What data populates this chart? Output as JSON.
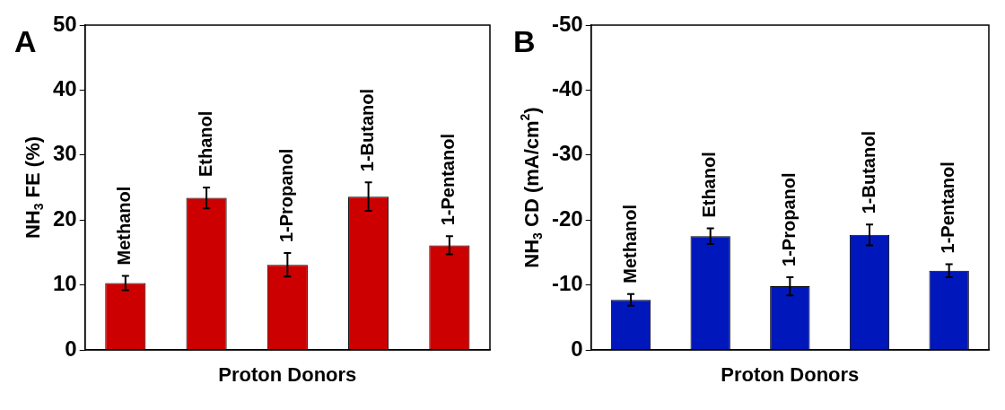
{
  "chart_data": [
    {
      "type": "bar",
      "annotations": [
        "A"
      ],
      "xlabel": "Proton Donors",
      "ylabel": "NH$_{3}$ FE (%)",
      "categories": [
        "Methanol",
        "Ethanol",
        "1-Propanol",
        "1-Butanol",
        "1-Pentanol"
      ],
      "values": [
        10.3,
        23.4,
        13.1,
        23.6,
        16.1
      ],
      "errors": [
        1.1,
        1.6,
        1.8,
        2.2,
        1.4
      ],
      "color": "#cc0000",
      "ylim": [
        0,
        50
      ],
      "yticks": [
        0,
        10,
        20,
        30,
        40,
        50
      ],
      "tick_labels": "y"
    },
    {
      "type": "bar",
      "annotations": [
        "B"
      ],
      "xlabel": "Proton Donors",
      "ylabel": "NH$_{3}$ CD (mA/cm$^{2}$)",
      "categories": [
        "Methanol",
        "Ethanol",
        "1-Propanol",
        "1-Butanol",
        "1-Pentanol"
      ],
      "values": [
        -7.7,
        -17.5,
        -9.8,
        -17.7,
        -12.2
      ],
      "errors": [
        0.9,
        1.2,
        1.4,
        1.6,
        1.0
      ],
      "color": "#0018bb",
      "ylim": [
        0,
        -50
      ],
      "yticks": [
        0,
        -10,
        -20,
        -30,
        -40,
        -50
      ],
      "tick_labels": "y"
    }
  ]
}
